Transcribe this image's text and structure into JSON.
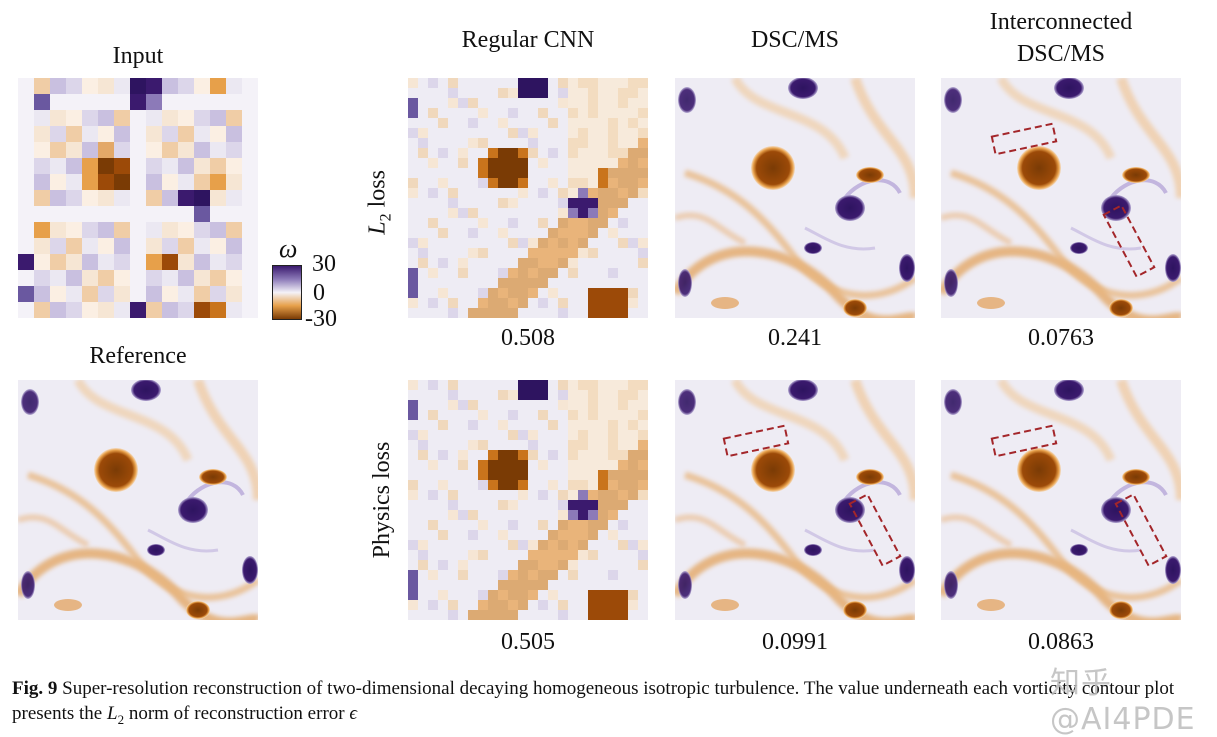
{
  "column_titles": {
    "input": "Input",
    "reference": "Reference",
    "regular_cnn": "Regular CNN",
    "dsc_ms": "DSC/MS",
    "interconnected_line1": "Interconnected",
    "interconnected_line2": "DSC/MS"
  },
  "row_labels": {
    "l2_symbol": "L",
    "l2_sub": "2",
    "l2_word": "loss",
    "physics": "Physics loss"
  },
  "colorbar": {
    "symbol": "ω",
    "max": "30",
    "mid": "0",
    "min": "-30",
    "colors": [
      "#3b1a6e",
      "#8c7ab8",
      "#f4f2f8",
      "#e7a04a",
      "#7a3b05"
    ]
  },
  "errors": {
    "l2_regular_cnn": "0.508",
    "l2_dsc_ms": "0.241",
    "l2_interconnected": "0.0763",
    "phys_regular_cnn": "0.505",
    "phys_dsc_ms": "0.0991",
    "phys_interconnected": "0.0863"
  },
  "caption": {
    "fig": "Fig. 9",
    "text1": "Super-resolution reconstruction of two-dimensional decaying homogeneous isotropic turbulence. The value underneath each vorticity contour plot presents the",
    "norm_symbol": "L",
    "norm_sub": "2",
    "text2": "norm of reconstruction error",
    "epsilon": "ϵ"
  },
  "watermark": "知乎 @AI4PDE",
  "highlight_color": "#a3262a"
}
